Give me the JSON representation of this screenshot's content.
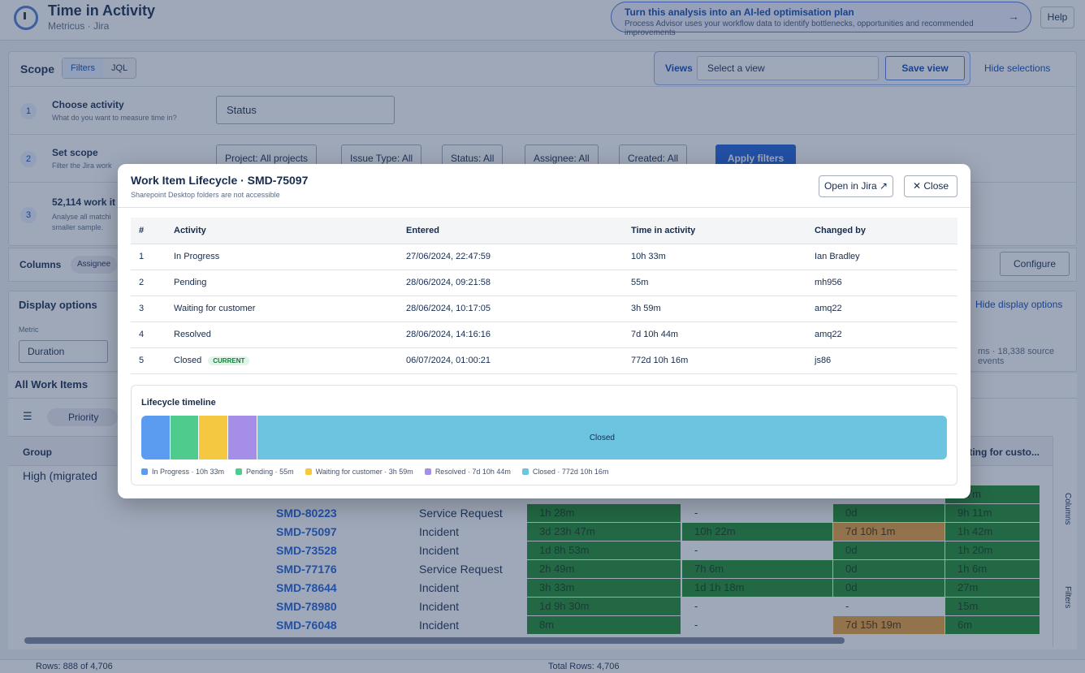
{
  "header": {
    "title": "Time in Activity",
    "subtitle": "Metricus · Jira",
    "ai_banner_title": "Turn this analysis into an AI-led optimisation plan",
    "ai_banner_desc": "Process Advisor uses your workflow data to identify bottlenecks, opportunities and recommended improvements",
    "ai_banner_arrow": "→",
    "help": "Help"
  },
  "scope": {
    "label": "Scope",
    "tabs": [
      "Filters",
      "JQL"
    ],
    "views_label": "Views",
    "views_placeholder": "Select a view",
    "save_view": "Save view",
    "hide_selections": "Hide selections",
    "steps": [
      {
        "num": "1",
        "title": "Choose activity",
        "desc": "What do you want to measure time in?"
      },
      {
        "num": "2",
        "title": "Set scope",
        "desc": "Filter the Jira work"
      },
      {
        "num": "3",
        "title": "52,114 work it",
        "desc": "Analyse all matchi"
      }
    ],
    "step3_desc2": "smaller sample.",
    "activity_value": "Status",
    "filters": [
      "Project: All projects",
      "Issue Type: All",
      "Status: All",
      "Assignee: All",
      "Created: All"
    ],
    "apply": "Apply filters"
  },
  "columns": {
    "label": "Columns",
    "chip": "Assignee",
    "configure": "Configure"
  },
  "display": {
    "label": "Display options",
    "hide": "Hide display options",
    "metric_label": "Metric",
    "metric_value": "Duration",
    "source_note": "ms · 18,338 source events"
  },
  "grid": {
    "title": "All Work Items",
    "priority_chip": "Priority",
    "group_header": "Group",
    "waiting_header": "iting for custo...",
    "group_row": "High (migrated",
    "partial_row": "h 7m",
    "rows": [
      {
        "key": "SMD-80223",
        "type": "Service Request",
        "c1": "1h 28m",
        "c2": "-",
        "c3": "0d",
        "c4": "9h 11m"
      },
      {
        "key": "SMD-75097",
        "type": "Incident",
        "c1": "3d 23h 47m",
        "c2": "10h 22m",
        "c3": "7d 10h 1m",
        "c4": "1h 42m"
      },
      {
        "key": "SMD-73528",
        "type": "Incident",
        "c1": "1d 8h 53m",
        "c2": "-",
        "c3": "0d",
        "c4": "1h 20m"
      },
      {
        "key": "SMD-77176",
        "type": "Service Request",
        "c1": "2h 49m",
        "c2": "7h 6m",
        "c3": "0d",
        "c4": "1h 6m"
      },
      {
        "key": "SMD-78644",
        "type": "Incident",
        "c1": "3h 33m",
        "c2": "1d 1h 18m",
        "c3": "0d",
        "c4": "27m"
      },
      {
        "key": "SMD-78980",
        "type": "Incident",
        "c1": "1d 9h 30m",
        "c2": "-",
        "c3": "-",
        "c4": "15m"
      },
      {
        "key": "SMD-76048",
        "type": "Incident",
        "c1": "8m",
        "c2": "-",
        "c3": "7d 15h 19m",
        "c4": "6m"
      }
    ],
    "side_columns": "Columns",
    "side_filters": "Filters"
  },
  "footer": {
    "rows": "Rows: 888 of 4,706",
    "total": "Total Rows: 4,706"
  },
  "modal": {
    "title": "Work Item Lifecycle · SMD-75097",
    "subtitle": "Sharepoint Desktop folders are not accessible",
    "open_jira": "Open in Jira ↗",
    "close": "Close",
    "close_glyph": "✕",
    "columns": [
      "#",
      "Activity",
      "Entered",
      "Time in activity",
      "Changed by"
    ],
    "rows": [
      {
        "n": "1",
        "activity": "In Progress",
        "entered": "27/06/2024, 22:47:59",
        "time": "10h 33m",
        "by": "Ian Bradley",
        "current": ""
      },
      {
        "n": "2",
        "activity": "Pending",
        "entered": "28/06/2024, 09:21:58",
        "time": "55m",
        "by": "mh956",
        "current": ""
      },
      {
        "n": "3",
        "activity": "Waiting for customer",
        "entered": "28/06/2024, 10:17:05",
        "time": "3h 59m",
        "by": "amq22",
        "current": ""
      },
      {
        "n": "4",
        "activity": "Resolved",
        "entered": "28/06/2024, 14:16:16",
        "time": "7d 10h 44m",
        "by": "amq22",
        "current": ""
      },
      {
        "n": "5",
        "activity": "Closed",
        "entered": "06/07/2024, 01:00:21",
        "time": "772d 10h 16m",
        "by": "js86",
        "current": "CURRENT"
      }
    ],
    "timeline": {
      "title": "Lifecycle timeline",
      "segments": [
        {
          "label": "In Progress",
          "duration": "10h 33m",
          "share": 0.036,
          "color": "#5b9cf0",
          "text": ""
        },
        {
          "label": "Pending",
          "duration": "55m",
          "share": 0.036,
          "color": "#4ecb8d",
          "text": ""
        },
        {
          "label": "Waiting for customer",
          "duration": "3h 59m",
          "share": 0.036,
          "color": "#f5c842",
          "text": ""
        },
        {
          "label": "Resolved",
          "duration": "7d 10h 44m",
          "share": 0.036,
          "color": "#a48ee8",
          "text": ""
        },
        {
          "label": "Closed",
          "duration": "772d 10h 16m",
          "share": 0.856,
          "color": "#6cc4e0",
          "text": "Closed"
        }
      ],
      "legend": [
        "In Progress · 10h 33m",
        "Pending · 55m",
        "Waiting for customer · 3h 59m",
        "Resolved · 7d 10h 44m",
        "Closed · 772d 10h 16m"
      ]
    }
  }
}
